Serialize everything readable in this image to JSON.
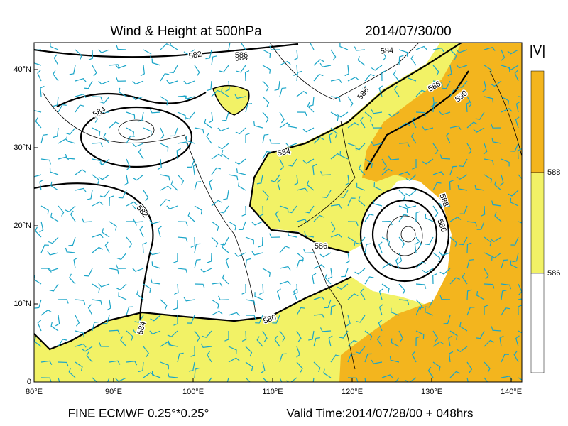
{
  "header": {
    "title": "Wind & Height at 500hPa",
    "date": "2014/07/30/00"
  },
  "axes": {
    "lat_ticks": [
      {
        "value": 40,
        "label": "40°N"
      },
      {
        "value": 30,
        "label": "30°N"
      },
      {
        "value": 20,
        "label": "20°N"
      },
      {
        "value": 10,
        "label": "10°N"
      },
      0
    ],
    "lon_ticks": [
      {
        "value": 80,
        "label": "80°E"
      },
      {
        "value": 90,
        "label": "90°E"
      },
      {
        "value": 100,
        "label": "100°E"
      },
      {
        "value": 110,
        "label": "110°E"
      },
      {
        "value": 120,
        "label": "120°E"
      },
      {
        "value": 130,
        "label": "130°E"
      },
      {
        "value": 140,
        "label": "140°E"
      }
    ]
  },
  "colorbar": {
    "title": "|V|",
    "labels": [
      588,
      586
    ]
  },
  "contour_labels": [
    582,
    584,
    584,
    584,
    582,
    584,
    586,
    586,
    590,
    586,
    588,
    586,
    584,
    586,
    586
  ],
  "footer": {
    "left": "FINE ECMWF 0.25°*0.25°",
    "right": "Valid Time:2014/07/28/00 + 048hrs"
  }
}
